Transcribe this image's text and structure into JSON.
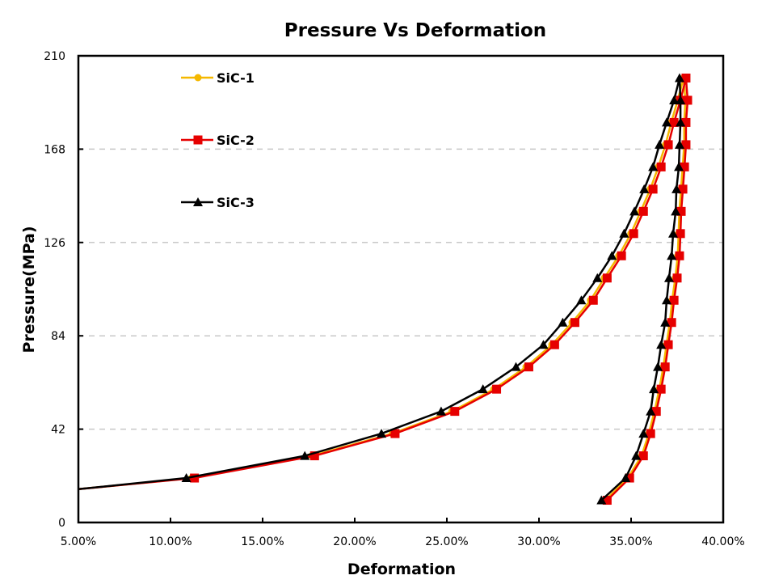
{
  "chart_data": {
    "type": "line",
    "title": "Pressure Vs Deformation",
    "xlabel": "Deformation",
    "ylabel": "Pressure(MPa)",
    "xlim": [
      5,
      40
    ],
    "ylim": [
      0,
      210
    ],
    "x_ticks": [
      "5.00%",
      "10.00%",
      "15.00%",
      "20.00%",
      "25.00%",
      "30.00%",
      "35.00%",
      "40.00%"
    ],
    "y_ticks": [
      "0",
      "42",
      "84",
      "126",
      "168",
      "210"
    ],
    "grid": "horizontal dashed",
    "legend_position": "top-left",
    "series": [
      {
        "name": "SiC-1",
        "color": "#f5b800",
        "marker": "circle",
        "x": [
          5.0,
          11.15,
          17.67,
          22.04,
          25.28,
          27.55,
          29.3,
          30.7,
          31.8,
          32.8,
          33.55,
          34.33,
          34.99,
          35.52,
          36.04,
          36.48,
          36.87,
          37.18,
          37.53,
          37.85,
          37.95,
          37.88,
          37.88,
          37.8,
          37.71,
          37.62,
          37.58,
          37.53,
          37.4,
          37.23,
          37.1,
          36.92,
          36.75,
          36.53,
          36.27,
          35.96,
          35.57,
          34.82,
          33.6
        ],
        "y": [
          15,
          20,
          30,
          40,
          50,
          60,
          70,
          80,
          90,
          100,
          110,
          120,
          130,
          140,
          150,
          160,
          170,
          180,
          190,
          200,
          190,
          180,
          170,
          160,
          150,
          140,
          130,
          120,
          110,
          100,
          90,
          80,
          70,
          60,
          50,
          40,
          30,
          20,
          10
        ]
      },
      {
        "name": "SiC-2",
        "color": "#e60000",
        "marker": "square",
        "x": [
          5.0,
          11.3,
          17.82,
          22.19,
          25.43,
          27.7,
          29.45,
          30.85,
          31.95,
          32.95,
          33.7,
          34.48,
          35.14,
          35.67,
          36.19,
          36.63,
          37.02,
          37.33,
          37.68,
          37.98,
          38.07,
          37.98,
          37.98,
          37.9,
          37.81,
          37.72,
          37.68,
          37.63,
          37.5,
          37.33,
          37.2,
          37.02,
          36.85,
          36.63,
          36.37,
          36.06,
          35.67,
          34.92,
          33.7
        ],
        "y": [
          15,
          20,
          30,
          40,
          50,
          60,
          70,
          80,
          90,
          100,
          110,
          120,
          130,
          140,
          150,
          160,
          170,
          180,
          190,
          200,
          190,
          180,
          170,
          160,
          150,
          140,
          130,
          120,
          110,
          100,
          90,
          80,
          70,
          60,
          50,
          40,
          30,
          20,
          10
        ]
      },
      {
        "name": "SiC-3",
        "color": "#000000",
        "marker": "triangle",
        "x": [
          5.0,
          10.86,
          17.29,
          21.45,
          24.69,
          26.96,
          28.75,
          30.24,
          31.29,
          32.3,
          33.17,
          33.96,
          34.62,
          35.18,
          35.71,
          36.19,
          36.54,
          36.93,
          37.33,
          37.63,
          37.68,
          37.68,
          37.63,
          37.59,
          37.46,
          37.42,
          37.28,
          37.2,
          37.06,
          36.93,
          36.85,
          36.63,
          36.45,
          36.23,
          36.06,
          35.67,
          35.27,
          34.7,
          33.39
        ],
        "y": [
          15,
          20,
          30,
          40,
          50,
          60,
          70,
          80,
          90,
          100,
          110,
          120,
          130,
          140,
          150,
          160,
          170,
          180,
          190,
          200,
          190,
          180,
          170,
          160,
          150,
          140,
          130,
          120,
          110,
          100,
          90,
          80,
          70,
          60,
          50,
          40,
          30,
          20,
          10
        ]
      }
    ]
  }
}
